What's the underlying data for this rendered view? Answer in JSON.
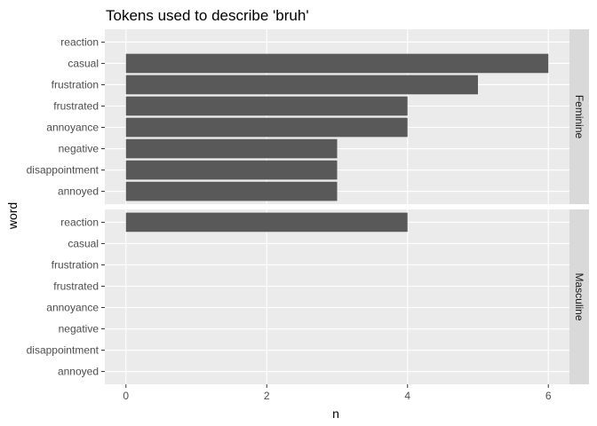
{
  "chart_data": {
    "type": "bar",
    "orientation": "horizontal",
    "title": "Tokens used to describe 'bruh'",
    "xlabel": "n",
    "ylabel": "word",
    "categories": [
      "reaction",
      "casual",
      "frustration",
      "frustrated",
      "annoyance",
      "negative",
      "disappointment",
      "annoyed"
    ],
    "xlim": [
      -0.3,
      6.3
    ],
    "xticks": [
      0,
      2,
      4,
      6
    ],
    "grid": true,
    "facet_by": "gender",
    "panels": [
      {
        "name": "Feminine",
        "values": [
          0,
          6,
          5,
          4,
          4,
          3,
          3,
          3
        ]
      },
      {
        "name": "Masculine",
        "values": [
          4,
          0,
          0,
          0,
          0,
          0,
          0,
          0
        ]
      }
    ],
    "colors": {
      "bar": "#595959",
      "panel_background": "#ebebeb",
      "grid": "#ffffff",
      "strip_background": "#d9d9d9"
    }
  }
}
